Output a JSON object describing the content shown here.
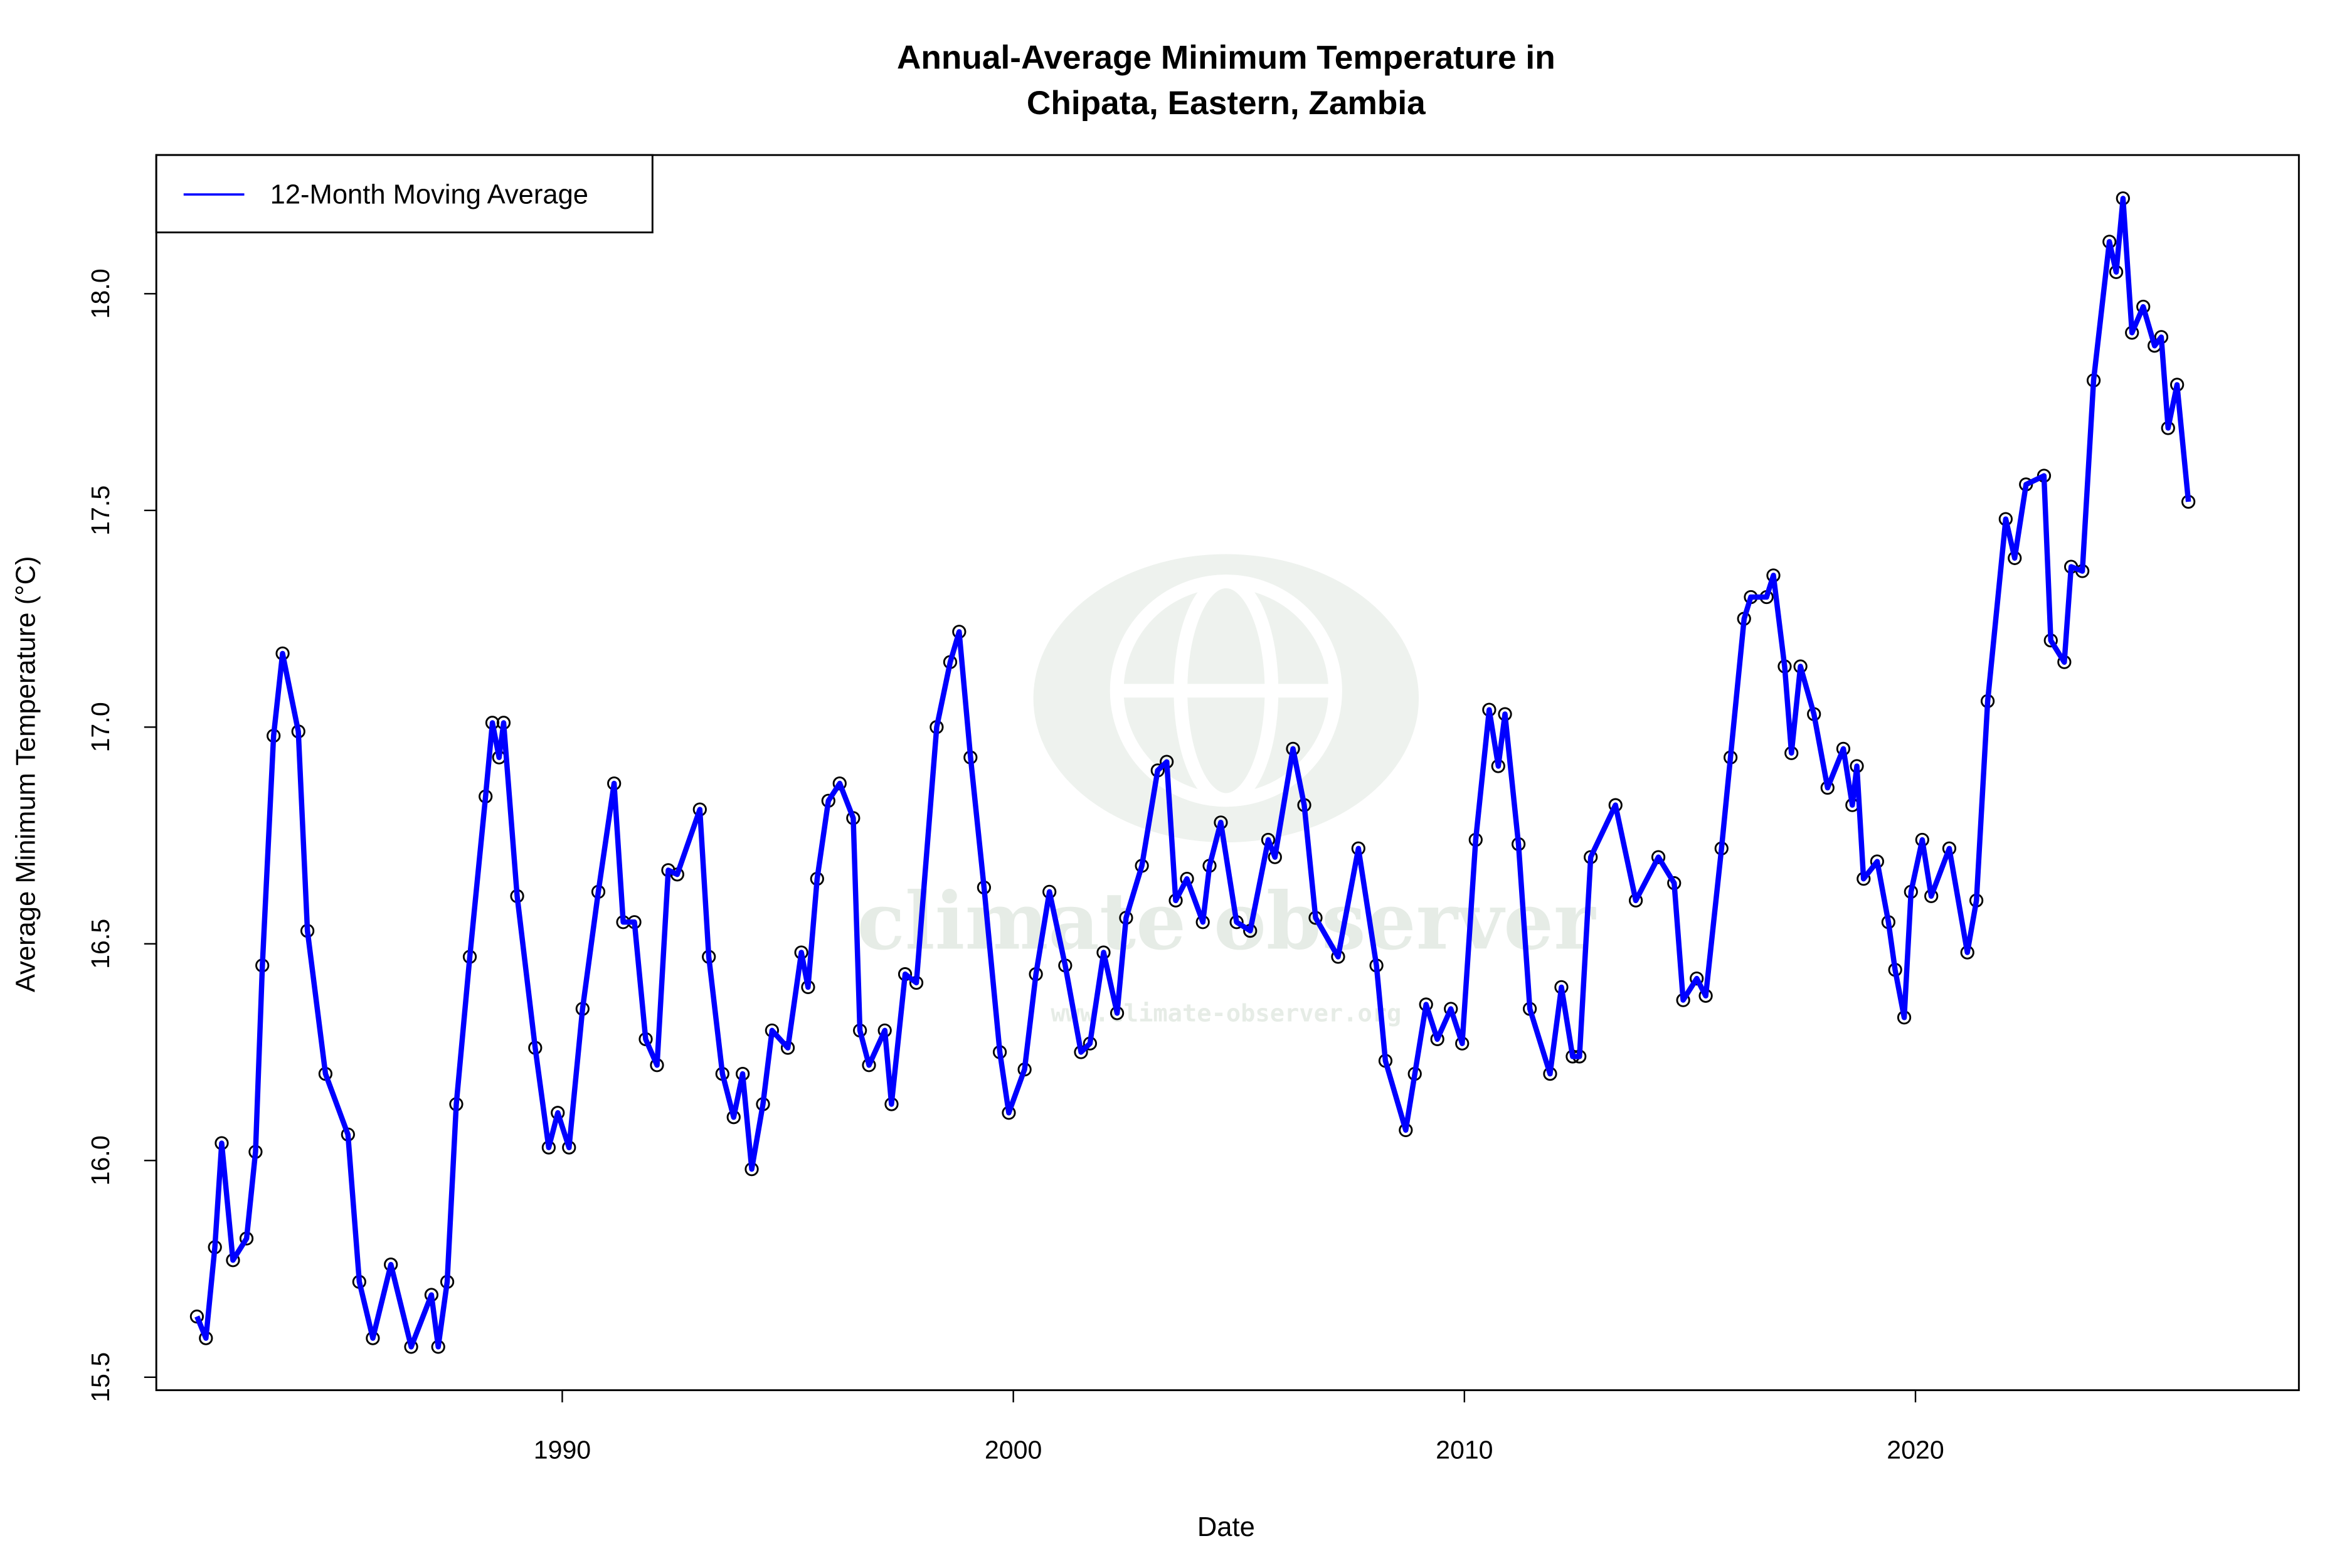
{
  "chart_data": {
    "type": "line",
    "title": "Annual-Average Minimum Temperature in",
    "subtitle": "Chipata, Eastern, Zambia",
    "xlabel": "Date",
    "ylabel": "Average Minimum Temperature (°C)",
    "xlim": [
      1981.0,
      2028.5
    ],
    "ylim": [
      15.47,
      18.32
    ],
    "x_ticks": [
      "1990",
      "2000",
      "2010",
      "2020"
    ],
    "y_ticks": [
      "15.5",
      "16.0",
      "16.5",
      "17.0",
      "17.5",
      "18.0"
    ],
    "grid": false,
    "legend": {
      "position": "top-left",
      "entries": [
        "12-Month Moving Average"
      ]
    },
    "watermark": {
      "text": "climate observer",
      "url": "www.climate-observer.org"
    },
    "series": [
      {
        "name": "12-Month Moving Average",
        "color": "#0000ff",
        "marker_color": "#000000",
        "x": [
          1981.9,
          1982.1,
          1982.3,
          1982.45,
          1982.7,
          1983.0,
          1983.2,
          1983.35,
          1983.6,
          1983.8,
          1984.15,
          1984.35,
          1984.75,
          1985.25,
          1985.5,
          1985.8,
          1986.2,
          1986.65,
          1987.1,
          1987.25,
          1987.45,
          1987.65,
          1987.95,
          1988.3,
          1988.45,
          1988.6,
          1988.7,
          1989.0,
          1989.4,
          1989.7,
          1989.9,
          1990.15,
          1990.45,
          1990.8,
          1991.15,
          1991.35,
          1991.6,
          1991.85,
          1992.1,
          1992.35,
          1992.55,
          1993.05,
          1993.25,
          1993.55,
          1993.8,
          1994.0,
          1994.2,
          1994.45,
          1994.65,
          1995.0,
          1995.3,
          1995.45,
          1995.65,
          1995.9,
          1996.15,
          1996.45,
          1996.6,
          1996.8,
          1997.15,
          1997.3,
          1997.6,
          1997.85,
          1998.3,
          1998.6,
          1998.8,
          1999.05,
          1999.35,
          1999.7,
          1999.9,
          2000.25,
          2000.5,
          2000.8,
          2001.15,
          2001.5,
          2001.7,
          2002.0,
          2002.3,
          2002.5,
          2002.85,
          2003.2,
          2003.4,
          2003.6,
          2003.85,
          2004.2,
          2004.35,
          2004.6,
          2004.95,
          2005.25,
          2005.65,
          2005.8,
          2006.2,
          2006.45,
          2006.7,
          2007.2,
          2007.65,
          2008.05,
          2008.25,
          2008.7,
          2008.9,
          2009.15,
          2009.4,
          2009.7,
          2009.95,
          2010.25,
          2010.55,
          2010.75,
          2010.9,
          2011.2,
          2011.45,
          2011.9,
          2012.15,
          2012.4,
          2012.55,
          2012.8,
          2013.35,
          2013.8,
          2014.3,
          2014.65,
          2014.85,
          2015.15,
          2015.35,
          2015.7,
          2015.9,
          2016.2,
          2016.35,
          2016.7,
          2016.85,
          2017.1,
          2017.25,
          2017.45,
          2017.75,
          2018.05,
          2018.4,
          2018.6,
          2018.7,
          2018.85,
          2019.15,
          2019.4,
          2019.55,
          2019.75,
          2019.9,
          2020.15,
          2020.35,
          2020.75,
          2021.15,
          2021.35,
          2021.6,
          2022.0,
          2022.2,
          2022.45,
          2022.85,
          2023.0,
          2023.3,
          2023.45,
          2023.7,
          2023.95,
          2024.3,
          2024.45,
          2024.6,
          2024.8,
          2025.05,
          2025.3,
          2025.45,
          2025.6,
          2025.8,
          2026.05
        ],
        "y": [
          15.64,
          15.59,
          15.8,
          16.04,
          15.77,
          15.82,
          16.02,
          16.45,
          16.98,
          17.17,
          16.99,
          16.53,
          16.2,
          16.06,
          15.72,
          15.59,
          15.76,
          15.57,
          15.69,
          15.57,
          15.72,
          16.13,
          16.47,
          16.84,
          17.01,
          16.93,
          17.01,
          16.61,
          16.26,
          16.03,
          16.11,
          16.03,
          16.35,
          16.62,
          16.87,
          16.55,
          16.55,
          16.28,
          16.22,
          16.67,
          16.66,
          16.81,
          16.47,
          16.2,
          16.1,
          16.2,
          15.98,
          16.13,
          16.3,
          16.26,
          16.48,
          16.4,
          16.65,
          16.83,
          16.87,
          16.79,
          16.3,
          16.22,
          16.3,
          16.13,
          16.43,
          16.41,
          17.0,
          17.15,
          17.22,
          16.93,
          16.63,
          16.25,
          16.11,
          16.21,
          16.43,
          16.62,
          16.45,
          16.25,
          16.27,
          16.48,
          16.34,
          16.56,
          16.68,
          16.9,
          16.92,
          16.6,
          16.65,
          16.55,
          16.68,
          16.78,
          16.55,
          16.53,
          16.74,
          16.7,
          16.95,
          16.82,
          16.56,
          16.47,
          16.72,
          16.45,
          16.23,
          16.07,
          16.2,
          16.36,
          16.28,
          16.35,
          16.27,
          16.74,
          17.04,
          16.91,
          17.03,
          16.73,
          16.35,
          16.2,
          16.4,
          16.24,
          16.24,
          16.7,
          16.82,
          16.6,
          16.7,
          16.64,
          16.37,
          16.42,
          16.38,
          16.72,
          16.93,
          17.25,
          17.3,
          17.3,
          17.35,
          17.14,
          16.94,
          17.14,
          17.03,
          16.86,
          16.95,
          16.82,
          16.91,
          16.65,
          16.69,
          16.55,
          16.44,
          16.33,
          16.62,
          16.74,
          16.61,
          16.72,
          16.48,
          16.6,
          17.06,
          17.48,
          17.39,
          17.56,
          17.58,
          17.2,
          17.15,
          17.37,
          17.36,
          17.8,
          18.12,
          18.05,
          18.22,
          17.91,
          17.97,
          17.88,
          17.9,
          17.69,
          17.79,
          17.52
        ]
      }
    ]
  }
}
